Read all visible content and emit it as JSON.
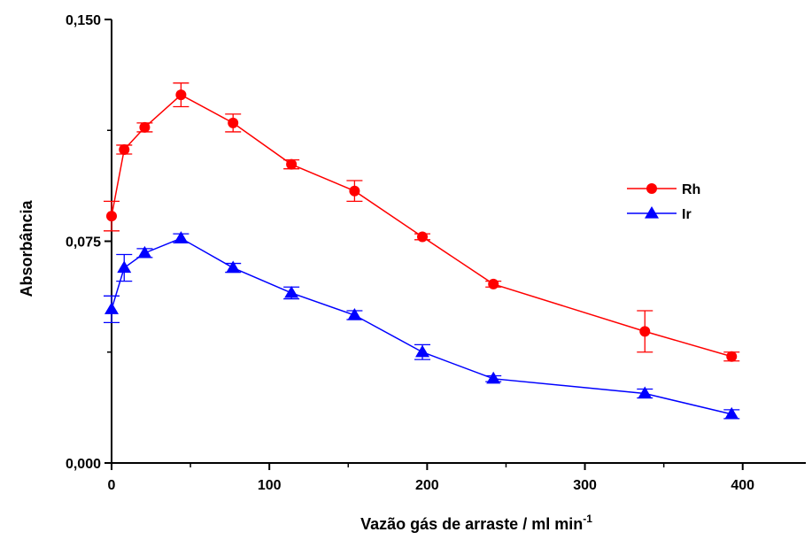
{
  "chart_data": {
    "type": "line",
    "xlabel": "Vazão gás de arraste / ml min",
    "xlabel_superscript": "-1",
    "ylabel": "Absorbância",
    "xlim": [
      0,
      440
    ],
    "ylim": [
      0,
      0.15
    ],
    "x_ticks": [
      0,
      100,
      200,
      300,
      400
    ],
    "x_tick_labels": [
      "0",
      "100",
      "200",
      "300",
      "400"
    ],
    "y_ticks": [
      0,
      0.075,
      0.15
    ],
    "y_tick_labels": [
      "0,000",
      "0,075",
      "0,150"
    ],
    "grid": false,
    "legend_position": "right",
    "series": [
      {
        "name": "Rh",
        "color": "#ff0000",
        "marker": "circle",
        "points": [
          {
            "x": 0,
            "y": 0.0835,
            "err": 0.005
          },
          {
            "x": 8,
            "y": 0.106,
            "err": 0.0015
          },
          {
            "x": 21,
            "y": 0.1135,
            "err": 0.0015
          },
          {
            "x": 44,
            "y": 0.1245,
            "err": 0.004
          },
          {
            "x": 77,
            "y": 0.115,
            "err": 0.003
          },
          {
            "x": 114,
            "y": 0.101,
            "err": 0.0015
          },
          {
            "x": 154,
            "y": 0.092,
            "err": 0.0035
          },
          {
            "x": 197,
            "y": 0.0765,
            "err": 0.001
          },
          {
            "x": 242,
            "y": 0.0605,
            "err": 0.001
          },
          {
            "x": 338,
            "y": 0.0445,
            "err": 0.007
          },
          {
            "x": 393,
            "y": 0.036,
            "err": 0.0015
          }
        ]
      },
      {
        "name": "Ir",
        "color": "#0000ff",
        "marker": "triangle",
        "points": [
          {
            "x": 0,
            "y": 0.052,
            "err": 0.0045
          },
          {
            "x": 8,
            "y": 0.066,
            "err": 0.0045
          },
          {
            "x": 21,
            "y": 0.071,
            "err": 0.0015
          },
          {
            "x": 44,
            "y": 0.076,
            "err": 0.0015
          },
          {
            "x": 77,
            "y": 0.066,
            "err": 0.0015
          },
          {
            "x": 114,
            "y": 0.0575,
            "err": 0.002
          },
          {
            "x": 154,
            "y": 0.05,
            "err": 0.0015
          },
          {
            "x": 197,
            "y": 0.0375,
            "err": 0.0025
          },
          {
            "x": 242,
            "y": 0.0285,
            "err": 0.001
          },
          {
            "x": 338,
            "y": 0.0235,
            "err": 0.0015
          },
          {
            "x": 393,
            "y": 0.0165,
            "err": 0.0015
          }
        ]
      }
    ]
  }
}
